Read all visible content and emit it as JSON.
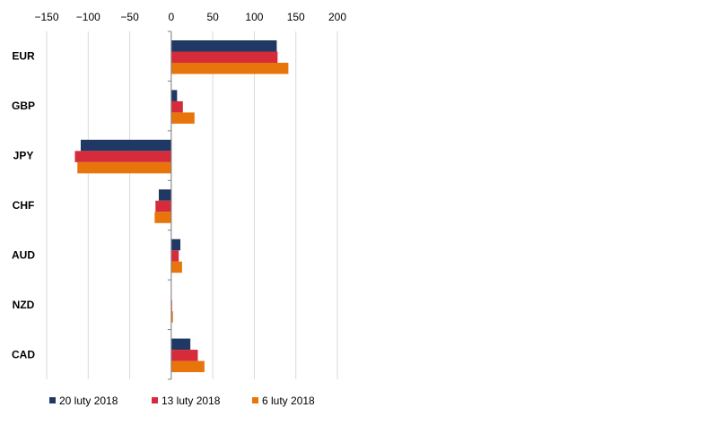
{
  "chart_data": {
    "type": "bar",
    "orientation": "horizontal",
    "categories": [
      "EUR",
      "GBP",
      "JPY",
      "CHF",
      "AUD",
      "NZD",
      "CAD"
    ],
    "series": [
      {
        "name": "20 luty 2018",
        "color": "#1f3864",
        "values": [
          127,
          7,
          -109,
          -15,
          11,
          0,
          23
        ]
      },
      {
        "name": "13 luty 2018",
        "color": "#d52b3b",
        "values": [
          128,
          14,
          -116,
          -19,
          9,
          1,
          32
        ]
      },
      {
        "name": "6 luty 2018",
        "color": "#e8740c",
        "values": [
          141,
          28,
          -113,
          -20,
          13,
          2,
          40
        ]
      }
    ],
    "xticks": [
      "-150",
      "-100",
      "-50",
      "0",
      "50",
      "100",
      "150",
      "200"
    ],
    "xlim": [
      -150,
      200
    ],
    "xaxis_position": "top",
    "legend_position": "bottom",
    "grid": true,
    "title": "",
    "xlabel": "",
    "ylabel": ""
  }
}
